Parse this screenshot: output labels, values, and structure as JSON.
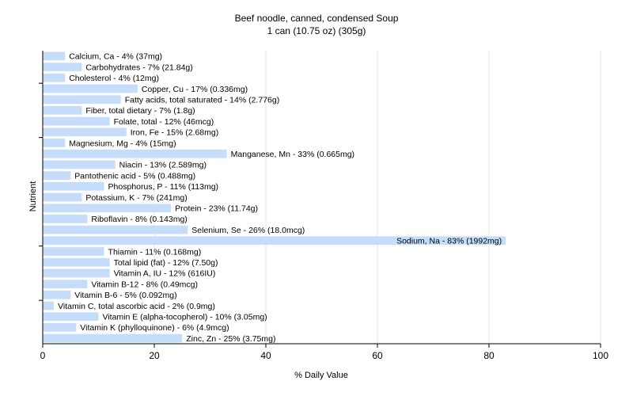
{
  "chart_data": {
    "type": "bar",
    "orientation": "horizontal",
    "title": "Beef noodle, canned, condensed Soup",
    "subtitle": "1 can (10.75 oz) (305g)",
    "xlabel": "% Daily Value",
    "ylabel": "Nutrient",
    "xlim": [
      0,
      100
    ],
    "xticks": [
      "0",
      "20",
      "40",
      "60",
      "80",
      "100"
    ],
    "grid": true,
    "bar_color": "#c5dcfb",
    "categories": [
      "Calcium, Ca - 4% (37mg)",
      "Carbohydrates - 7% (21.84g)",
      "Cholesterol - 4% (12mg)",
      "Copper, Cu - 17% (0.336mg)",
      "Fatty acids, total saturated - 14% (2.776g)",
      "Fiber, total dietary - 7% (1.8g)",
      "Folate, total - 12% (46mcg)",
      "Iron, Fe - 15% (2.68mg)",
      "Magnesium, Mg - 4% (15mg)",
      "Manganese, Mn - 33% (0.665mg)",
      "Niacin - 13% (2.589mg)",
      "Pantothenic acid - 5% (0.488mg)",
      "Phosphorus, P - 11% (113mg)",
      "Potassium, K - 7% (241mg)",
      "Protein - 23% (11.74g)",
      "Riboflavin - 8% (0.143mg)",
      "Selenium, Se - 26% (18.0mcg)",
      "Sodium, Na - 83% (1992mg)",
      "Thiamin - 11% (0.168mg)",
      "Total lipid (fat) - 12% (7.50g)",
      "Vitamin A, IU - 12% (616IU)",
      "Vitamin B-12 - 8% (0.49mcg)",
      "Vitamin B-6 - 5% (0.092mg)",
      "Vitamin C, total ascorbic acid - 2% (0.9mg)",
      "Vitamin E (alpha-tocopherol) - 10% (3.05mg)",
      "Vitamin K (phylloquinone) - 6% (4.9mcg)",
      "Zinc, Zn - 25% (3.75mg)"
    ],
    "values": [
      4,
      7,
      4,
      17,
      14,
      7,
      12,
      15,
      4,
      33,
      13,
      5,
      11,
      7,
      23,
      8,
      26,
      83,
      11,
      12,
      12,
      8,
      5,
      2,
      10,
      6,
      25
    ]
  }
}
